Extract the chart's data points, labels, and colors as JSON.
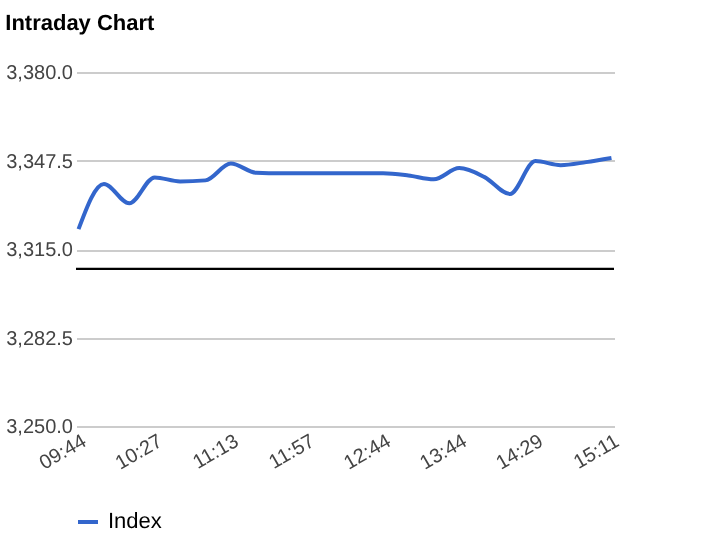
{
  "chart_data": {
    "type": "line",
    "title": "Intraday Chart",
    "categories": [
      "09:44",
      null,
      null,
      "10:27",
      null,
      null,
      "11:13",
      null,
      null,
      "11:57",
      null,
      null,
      "12:44",
      null,
      null,
      "13:44",
      null,
      null,
      "14:29",
      null,
      null,
      "15:11"
    ],
    "series": [
      {
        "name": "Index",
        "color": "#3366cc",
        "values": [
          3322.3,
          3338.9,
          3331.8,
          3341.3,
          3339.8,
          3340.2,
          3346.4,
          3343.0,
          3342.8,
          3342.8,
          3342.8,
          3342.8,
          3342.8,
          3342.0,
          3340.6,
          3344.7,
          3341.4,
          3335.2,
          3347.3,
          3345.8,
          3346.9,
          3348.4
        ]
      }
    ],
    "ylim": [
      3250,
      3380
    ],
    "yticks": [
      {
        "value": 3250,
        "label": "3,250.0"
      },
      {
        "value": 3282.5,
        "label": "3,282.5"
      },
      {
        "value": 3315,
        "label": "3,315.0"
      },
      {
        "value": 3347.5,
        "label": "3,347.5"
      },
      {
        "value": 3380,
        "label": "3,380.0"
      }
    ],
    "ref_lines": [
      {
        "axis": "y",
        "value": 3307.7,
        "color": "#000000"
      }
    ],
    "grid": "y",
    "legend": "bottom",
    "marker": "none",
    "line_style": "solid"
  }
}
